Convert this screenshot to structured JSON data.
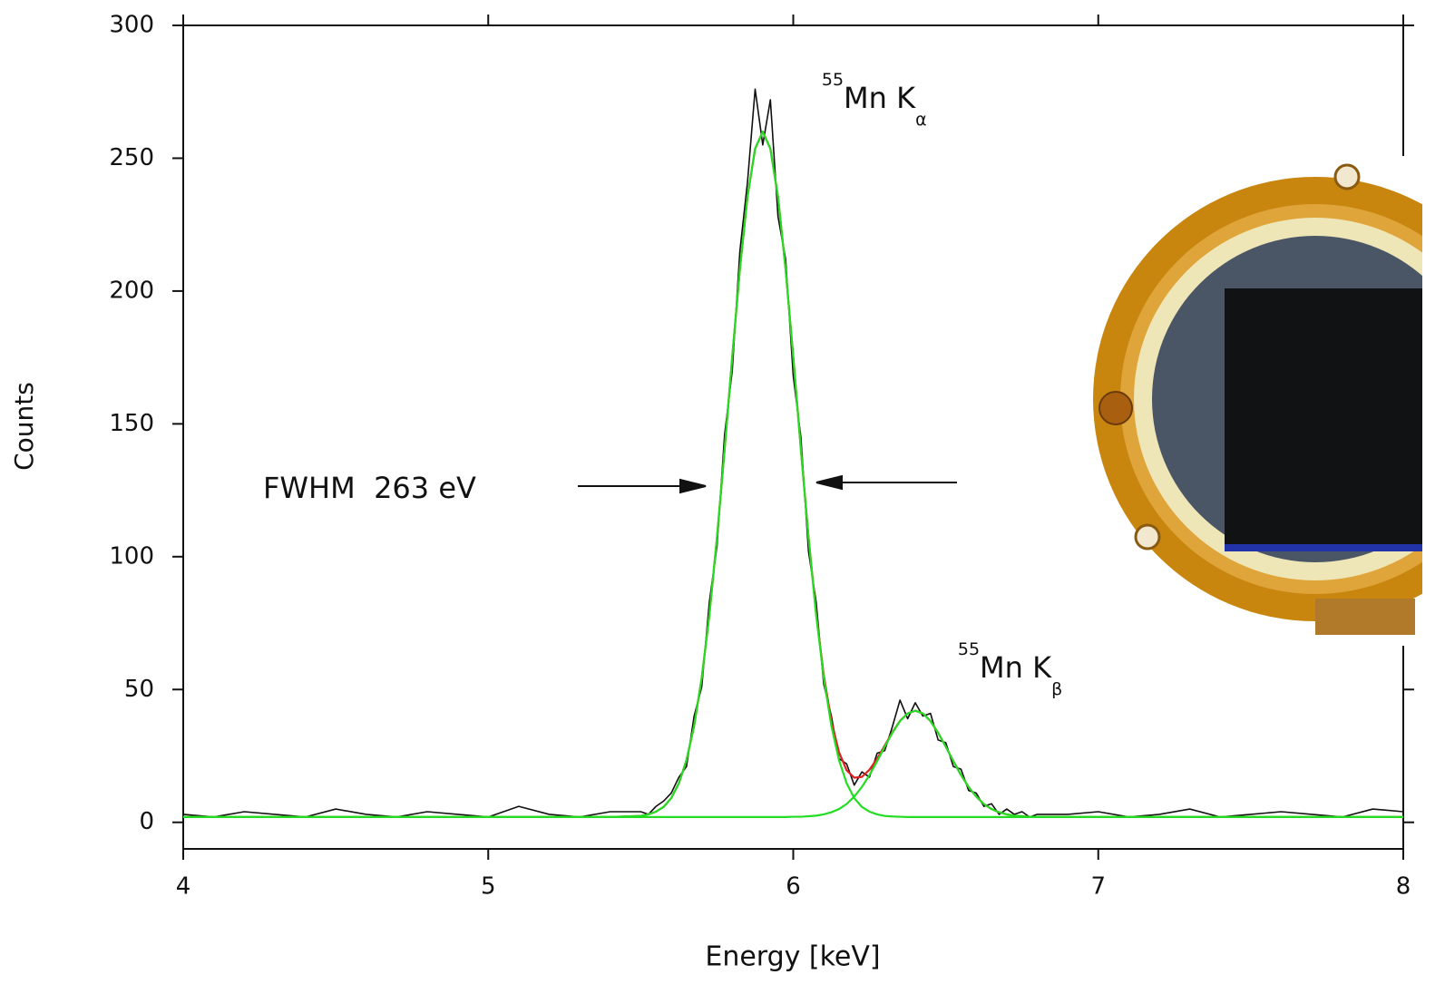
{
  "chart_data": {
    "type": "line",
    "xlabel": "Energy [keV]",
    "ylabel": "Counts",
    "xlim": [
      4,
      8
    ],
    "ylim": [
      -10,
      300
    ],
    "xticks": [
      4,
      5,
      6,
      7,
      8
    ],
    "yticks": [
      0,
      50,
      100,
      150,
      200,
      250,
      300
    ],
    "annotations": [
      {
        "text": "FWHM  263 eV"
      },
      {
        "sup": "55",
        "text": "Mn K",
        "sub": "α"
      },
      {
        "sup": "55",
        "text": "Mn K",
        "sub": "β"
      }
    ],
    "x": [
      4.0,
      4.1,
      4.2,
      4.3,
      4.4,
      4.5,
      4.6,
      4.7,
      4.8,
      4.9,
      5.0,
      5.1,
      5.2,
      5.3,
      5.4,
      5.5,
      5.525,
      5.55,
      5.575,
      5.6,
      5.625,
      5.65,
      5.675,
      5.7,
      5.725,
      5.75,
      5.775,
      5.8,
      5.825,
      5.85,
      5.875,
      5.9,
      5.925,
      5.95,
      5.975,
      6.0,
      6.025,
      6.05,
      6.075,
      6.1,
      6.125,
      6.15,
      6.175,
      6.2,
      6.225,
      6.25,
      6.275,
      6.3,
      6.325,
      6.35,
      6.375,
      6.4,
      6.425,
      6.45,
      6.475,
      6.5,
      6.525,
      6.55,
      6.575,
      6.6,
      6.625,
      6.65,
      6.675,
      6.7,
      6.725,
      6.75,
      6.775,
      6.8,
      6.9,
      7.0,
      7.1,
      7.2,
      7.3,
      7.4,
      7.5,
      7.6,
      7.7,
      7.8,
      7.9,
      8.0
    ],
    "series": [
      {
        "color": "#111111",
        "values": [
          3,
          2,
          4,
          3,
          2,
          5,
          3,
          2,
          4,
          3,
          2,
          6,
          3,
          2,
          4,
          4,
          3,
          6,
          8,
          11,
          17,
          21,
          40,
          51,
          83,
          104,
          146,
          170,
          215,
          241,
          276,
          255,
          272,
          228,
          212,
          168,
          145,
          102,
          83,
          52,
          40,
          24,
          22,
          14,
          19,
          17,
          26,
          27,
          36,
          46,
          39,
          45,
          40,
          41,
          31,
          30,
          21,
          20,
          12,
          11,
          6,
          7,
          3,
          5,
          3,
          4,
          2,
          3,
          3,
          4,
          2,
          3,
          5,
          2,
          3,
          4,
          3,
          2,
          5,
          4
        ]
      },
      {
        "color": "#e02020",
        "values": [
          2,
          2,
          2,
          2,
          2,
          2,
          2,
          2,
          2,
          2,
          2,
          2,
          2,
          2,
          2,
          2.4,
          3.0,
          4.0,
          5.8,
          9.1,
          14.7,
          23.4,
          36.3,
          54.4,
          78.1,
          107.2,
          140.4,
          175.2,
          208.2,
          235.5,
          253.6,
          260,
          253.6,
          235.5,
          208.2,
          175.3,
          140.5,
          107.5,
          78.6,
          55.4,
          38.1,
          26.4,
          19.6,
          16.8,
          17.1,
          19.8,
          24.0,
          28.9,
          33.9,
          38.2,
          41.0,
          42,
          41.0,
          38.1,
          33.7,
          28.5,
          23.0,
          17.8,
          13.3,
          9.7,
          6.9,
          5.0,
          3.8,
          3.0,
          2.5,
          2.3,
          2.1,
          2.1,
          2,
          2,
          2,
          2,
          2,
          2,
          2,
          2,
          2,
          2,
          2,
          2
        ]
      },
      {
        "color": "#22dd22",
        "values": [
          2,
          2,
          2,
          2,
          2,
          2,
          2,
          2,
          2,
          2,
          2,
          2,
          2,
          2,
          2,
          2.4,
          3.0,
          4.0,
          5.8,
          9.1,
          14.7,
          23.4,
          36.3,
          54.4,
          78.1,
          107.2,
          140.4,
          175.2,
          208.2,
          235.5,
          253.6,
          260,
          253.6,
          235.5,
          208.2,
          175.2,
          140.4,
          107.2,
          78.1,
          54.4,
          36.3,
          23.4,
          14.7,
          9.1,
          5.8,
          4.0,
          3.0,
          2.4,
          2.2,
          2.1,
          2.0,
          2.0,
          2.0,
          2.0,
          2.0,
          2.0,
          2.0,
          2.0,
          2.0,
          2.0,
          2.0,
          2.0,
          2.0,
          2.0,
          2.0,
          2.0,
          2.0,
          2.0,
          2,
          2,
          2,
          2,
          2,
          2,
          2,
          2,
          2,
          2,
          2,
          2
        ]
      },
      {
        "color": "#22dd22",
        "values": [
          2,
          2,
          2,
          2,
          2,
          2,
          2,
          2,
          2,
          2,
          2,
          2,
          2,
          2,
          2,
          2.0,
          2.0,
          2.0,
          2.0,
          2.0,
          2.0,
          2.0,
          2.0,
          2.0,
          2.0,
          2.0,
          2.0,
          2.0,
          2.0,
          2.0,
          2.0,
          2.0,
          2.0,
          2.0,
          2.0,
          2.1,
          2.1,
          2.3,
          2.5,
          3.0,
          3.8,
          5.0,
          6.9,
          9.7,
          13.3,
          17.8,
          23.0,
          28.5,
          33.7,
          38.1,
          41.0,
          42,
          41.0,
          38.1,
          33.7,
          28.5,
          23.0,
          17.8,
          13.3,
          9.7,
          6.9,
          5.0,
          3.8,
          3.0,
          2.5,
          2.3,
          2.1,
          2.1,
          2,
          2,
          2,
          2,
          2,
          2,
          2,
          2,
          2,
          2,
          2,
          2
        ]
      }
    ]
  }
}
